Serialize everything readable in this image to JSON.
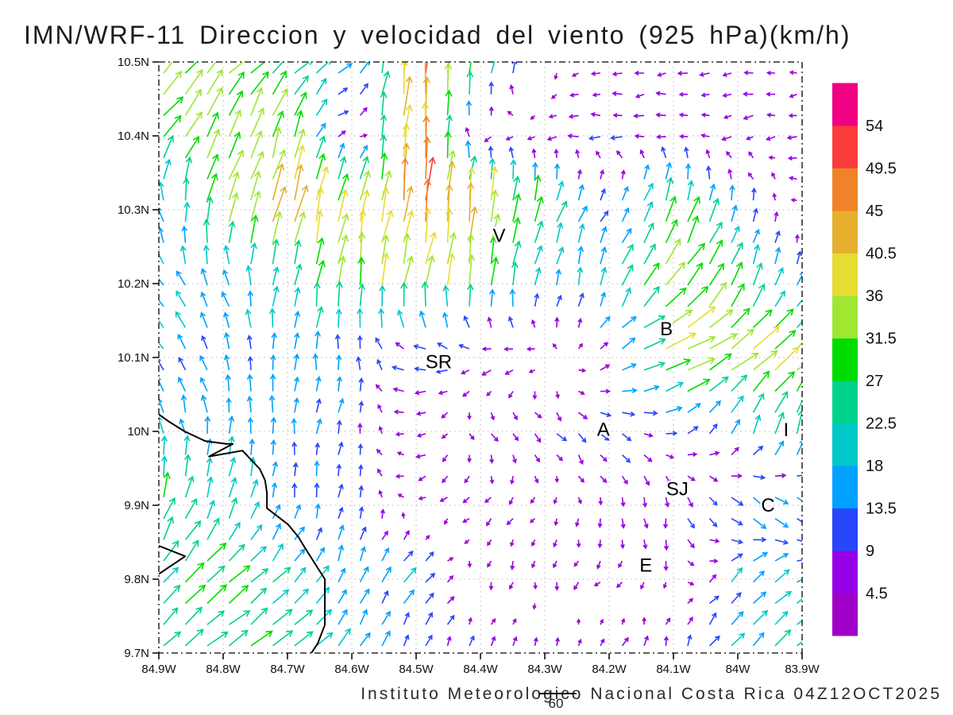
{
  "title": "IMN/WRF-11 Direccion y velocidad del viento (925 hPa)(km/h)",
  "footer": {
    "credit": "Instituto Meteorologico Nacional Costa Rica 04Z12OCT2025",
    "forecast_hour": "60"
  },
  "axes": {
    "lat_tick_labels": [
      "10.5N",
      "10.4N",
      "10.3N",
      "10.2N",
      "10.1N",
      "10N",
      "9.9N",
      "9.8N",
      "9.7N"
    ],
    "lat_values": [
      10.5,
      10.4,
      10.3,
      10.2,
      10.1,
      10.0,
      9.9,
      9.8,
      9.7
    ],
    "lon_tick_labels": [
      "84.9W",
      "84.8W",
      "84.7W",
      "84.6W",
      "84.5W",
      "84.4W",
      "84.3W",
      "84.2W",
      "84.1W",
      "84W",
      "83.9W"
    ],
    "lon_values": [
      -84.9,
      -84.8,
      -84.7,
      -84.6,
      -84.5,
      -84.4,
      -84.3,
      -84.2,
      -84.1,
      -84.0,
      -83.9
    ]
  },
  "colorbar": {
    "unit": "km/h",
    "levels": [
      4.5,
      9,
      13.5,
      18,
      22.5,
      27,
      31.5,
      36,
      40.5,
      45,
      49.5,
      54
    ],
    "colors": [
      "#a000c8",
      "#9600e6",
      "#2846fa",
      "#00a0ff",
      "#00c8c8",
      "#00d28c",
      "#00dc00",
      "#a0e632",
      "#e6dc32",
      "#e6af2d",
      "#f08228",
      "#fa3c3c",
      "#f00082"
    ]
  },
  "stations": [
    {
      "label": "V",
      "lon": -84.371,
      "lat": 10.266
    },
    {
      "label": "SR",
      "lon": -84.465,
      "lat": 10.095
    },
    {
      "label": "B",
      "lon": -84.111,
      "lat": 10.14
    },
    {
      "label": "A",
      "lon": -84.209,
      "lat": 10.004
    },
    {
      "label": "SJ",
      "lon": -84.094,
      "lat": 9.923
    },
    {
      "label": "C",
      "lon": -83.953,
      "lat": 9.901
    },
    {
      "label": "E",
      "lon": -84.143,
      "lat": 9.82
    },
    {
      "label": "I",
      "lon": -83.925,
      "lat": 10.003
    }
  ],
  "coastline": {
    "main": [
      [
        -84.9,
        10.023
      ],
      [
        -84.884,
        10.013
      ],
      [
        -84.86,
        10.0
      ],
      [
        -84.828,
        9.987
      ],
      [
        -84.795,
        9.983
      ],
      [
        -84.785,
        9.983
      ],
      [
        -84.822,
        9.966
      ],
      [
        -84.77,
        9.974
      ],
      [
        -84.743,
        9.949
      ],
      [
        -84.735,
        9.934
      ],
      [
        -84.732,
        9.917
      ],
      [
        -84.732,
        9.896
      ],
      [
        -84.699,
        9.874
      ],
      [
        -84.683,
        9.857
      ],
      [
        -84.674,
        9.844
      ],
      [
        -84.642,
        9.8
      ],
      [
        -84.642,
        9.738
      ],
      [
        -84.653,
        9.713
      ],
      [
        -84.663,
        9.7
      ]
    ],
    "spit": [
      [
        -84.9,
        9.845
      ],
      [
        -84.859,
        9.831
      ],
      [
        -84.9,
        9.807
      ]
    ]
  },
  "chart_data": {
    "type": "vector_field",
    "variable": "wind direction and speed at 925 hPa",
    "units": "km/h",
    "lon_range": [
      -84.9,
      -83.9
    ],
    "lat_range": [
      9.7,
      10.5
    ],
    "grid_lons": [
      -84.9,
      -84.8,
      -84.7,
      -84.6,
      -84.5,
      -84.4,
      -84.3,
      -84.2,
      -84.1,
      -84.0,
      -83.9
    ],
    "grid_lats": [
      10.5,
      10.4,
      10.3,
      10.2,
      10.1,
      10.0,
      9.9,
      9.8,
      9.7
    ],
    "u": [
      [
        20,
        25,
        22,
        10,
        5,
        7,
        0,
        -6,
        -6,
        -7,
        -6
      ],
      [
        18,
        14,
        10,
        3,
        3,
        -3,
        -5,
        -9,
        -6,
        -6,
        -6
      ],
      [
        -6,
        10,
        12,
        8,
        5,
        6,
        8,
        8,
        10,
        3,
        -4
      ],
      [
        -7,
        -7,
        7,
        4,
        7,
        4,
        3,
        6,
        22,
        10,
        4
      ],
      [
        -10,
        -6,
        0,
        1,
        -12,
        -9,
        -6,
        10,
        34,
        30,
        26
      ],
      [
        -6,
        1,
        1,
        3,
        -8,
        4,
        7,
        9,
        8,
        6,
        6
      ],
      [
        8,
        7,
        2,
        1,
        -5,
        -4,
        -3,
        1,
        2,
        12,
        11
      ],
      [
        18,
        22,
        14,
        6,
        12,
        -2,
        0,
        -4,
        0,
        12,
        14
      ],
      [
        15,
        20,
        22,
        8,
        3,
        4,
        1,
        5,
        2,
        12,
        18
      ]
    ],
    "v": [
      [
        22,
        23,
        15,
        9,
        50,
        32,
        -5,
        -1,
        -1,
        -1,
        -1
      ],
      [
        24,
        32,
        32,
        -5,
        50,
        -3,
        -2,
        0,
        0,
        -1,
        -1
      ],
      [
        15,
        33,
        40,
        33,
        47,
        42,
        26,
        8,
        30,
        14,
        -1
      ],
      [
        15,
        15,
        24,
        30,
        36,
        30,
        16,
        20,
        26,
        24,
        12
      ],
      [
        12,
        14,
        15,
        13,
        1,
        -2,
        -2,
        6,
        14,
        22,
        22
      ],
      [
        16,
        17,
        14,
        12,
        -2,
        -5,
        -6,
        -7,
        2,
        16,
        26
      ],
      [
        25,
        20,
        13,
        10,
        -2,
        -4,
        -3,
        -6,
        -10,
        -12,
        -11
      ],
      [
        18,
        20,
        14,
        15,
        12,
        -5,
        -6,
        -3,
        -5,
        14,
        8
      ],
      [
        15,
        15,
        18,
        16,
        10,
        9,
        6,
        5,
        10,
        12,
        16
      ]
    ]
  }
}
